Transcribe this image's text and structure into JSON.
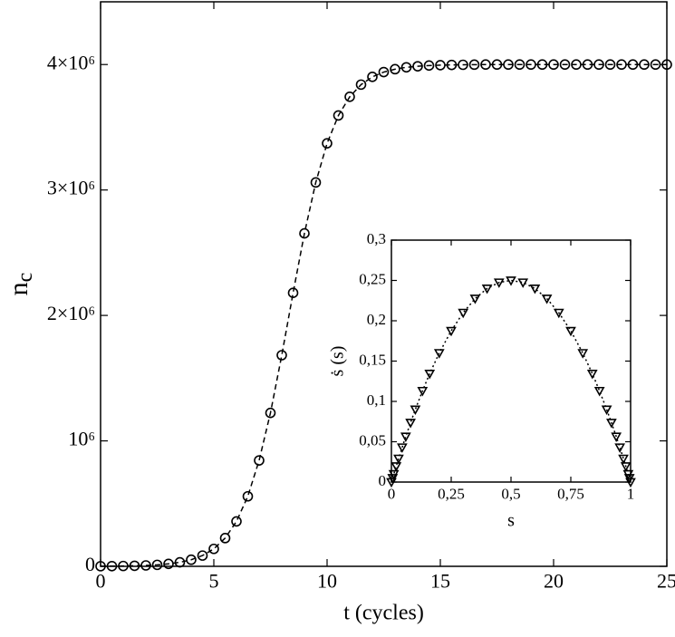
{
  "chart_data": [
    {
      "type": "scatter",
      "x_label": "t (cycles)",
      "y_label": "n",
      "y_label_subscript": "c",
      "xlim": [
        0,
        25
      ],
      "ylim": [
        0,
        4500000
      ],
      "xticks": [
        0,
        5,
        10,
        15,
        20,
        25
      ],
      "yticks": [
        0,
        {
          "value": 1000000,
          "label": "10⁶"
        },
        {
          "value": 2000000,
          "label": "2×10⁶"
        },
        {
          "value": 3000000,
          "label": "3×10⁶"
        },
        {
          "value": 4000000,
          "label": "4×10⁶"
        }
      ],
      "series": [
        {
          "color": "#000000",
          "marker": "circle",
          "line_style": "dashed",
          "x": [
            0,
            0.5,
            1,
            1.5,
            2,
            2.5,
            3,
            3.5,
            4,
            4.5,
            5,
            5.5,
            6,
            6.5,
            7,
            7.5,
            8,
            8.5,
            9,
            9.5,
            10,
            10.5,
            11,
            11.5,
            12,
            12.5,
            13,
            13.5,
            14,
            14.5,
            15,
            15.5,
            16,
            16.5,
            17,
            17.5,
            18,
            18.5,
            19,
            19.5,
            20,
            20.5,
            21,
            21.5,
            22,
            22.5,
            23,
            23.5,
            24,
            24.5,
            25
          ],
          "values": [
            974,
            1610,
            2650,
            4360,
            7180,
            11800,
            19500,
            32000,
            52500,
            85800,
            139000,
            225000,
            358000,
            558000,
            844000,
            1223000,
            1683000,
            2180000,
            2654000,
            3060000,
            3372000,
            3594000,
            3743000,
            3840000,
            3902000,
            3940000,
            3963000,
            3978000,
            3986000,
            3992000,
            3995000,
            3997000,
            3998000,
            3999000,
            4000000,
            4000000,
            4000000,
            4000000,
            4000000,
            4000000,
            4000000,
            4000000,
            4000000,
            4000000,
            4000000,
            4000000,
            4000000,
            4000000,
            4000000,
            4000000,
            4000000
          ]
        }
      ]
    },
    {
      "type": "scatter",
      "x_label": "s",
      "y_label": "ṡ (s)",
      "xlim": [
        0,
        1
      ],
      "ylim": [
        0,
        0.3
      ],
      "xticks": [
        0,
        {
          "value": 0.25,
          "label": "0,25"
        },
        {
          "value": 0.5,
          "label": "0,5"
        },
        {
          "value": 0.75,
          "label": "0,75"
        },
        1
      ],
      "yticks": [
        0,
        {
          "value": 0.05,
          "label": "0,05"
        },
        {
          "value": 0.1,
          "label": "0,1"
        },
        {
          "value": 0.15,
          "label": "0,15"
        },
        {
          "value": 0.2,
          "label": "0,2"
        },
        {
          "value": 0.25,
          "label": "0,25"
        },
        {
          "value": 0.3,
          "label": "0,3"
        }
      ],
      "series": [
        {
          "color": "#000000",
          "marker": "triangle-down",
          "line_style": "dotted",
          "x": [
            0,
            0.005,
            0.01,
            0.02,
            0.03,
            0.045,
            0.06,
            0.08,
            0.1,
            0.13,
            0.16,
            0.2,
            0.25,
            0.3,
            0.35,
            0.4,
            0.45,
            0.5,
            0.55,
            0.6,
            0.65,
            0.7,
            0.75,
            0.8,
            0.84,
            0.87,
            0.9,
            0.92,
            0.94,
            0.955,
            0.97,
            0.98,
            0.99,
            0.995,
            1
          ],
          "values": [
            0,
            0.004975,
            0.0099,
            0.0196,
            0.0291,
            0.043,
            0.0564,
            0.0736,
            0.09,
            0.1131,
            0.1344,
            0.16,
            0.1875,
            0.21,
            0.2275,
            0.24,
            0.2475,
            0.25,
            0.2475,
            0.24,
            0.2275,
            0.21,
            0.1875,
            0.16,
            0.1344,
            0.1131,
            0.09,
            0.0736,
            0.0564,
            0.043,
            0.0291,
            0.0196,
            0.0099,
            0.004975,
            0
          ]
        }
      ]
    }
  ]
}
